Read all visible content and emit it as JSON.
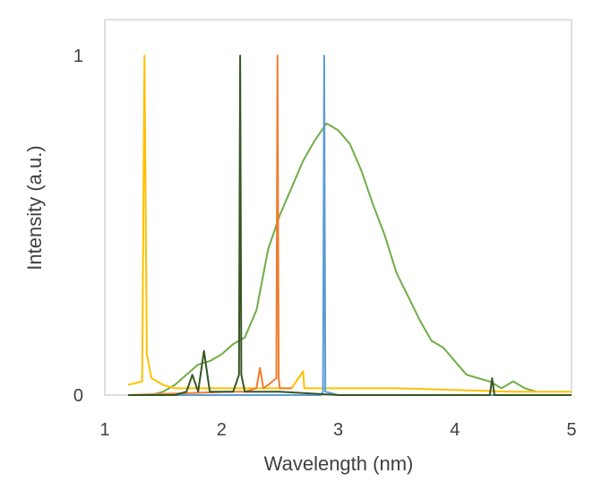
{
  "chart_data": {
    "type": "line",
    "title": "",
    "xlabel": "Wavelength (nm)",
    "ylabel": "Intensity (a.u.)",
    "xlim": [
      1,
      5
    ],
    "ylim": [
      0,
      1
    ],
    "x_ticks": [
      1,
      2,
      3,
      4,
      5
    ],
    "x_tick_labels": [
      "1",
      "2",
      "3",
      "4",
      "5"
    ],
    "y_ticks": [
      0,
      1
    ],
    "y_tick_labels": [
      "0",
      "1"
    ],
    "grid": false,
    "legend": "none",
    "series": [
      {
        "color": "#70ad47",
        "x": [
          1.2,
          1.3,
          1.4,
          1.5,
          1.6,
          1.7,
          1.8,
          1.9,
          2.0,
          2.1,
          2.2,
          2.3,
          2.4,
          2.5,
          2.6,
          2.7,
          2.8,
          2.9,
          3.0,
          3.1,
          3.2,
          3.3,
          3.4,
          3.5,
          3.6,
          3.7,
          3.8,
          3.9,
          4.0,
          4.1,
          4.2,
          4.3,
          4.4,
          4.5,
          4.6,
          4.7
        ],
        "y": [
          0.0,
          0.0,
          0.0,
          0.01,
          0.03,
          0.06,
          0.09,
          0.1,
          0.12,
          0.15,
          0.17,
          0.25,
          0.43,
          0.53,
          0.61,
          0.69,
          0.75,
          0.8,
          0.78,
          0.74,
          0.66,
          0.56,
          0.47,
          0.36,
          0.29,
          0.22,
          0.16,
          0.14,
          0.1,
          0.06,
          0.05,
          0.04,
          0.02,
          0.04,
          0.02,
          0.01
        ]
      },
      {
        "color": "#ffc000",
        "x": [
          1.2,
          1.32,
          1.34,
          1.36,
          1.4,
          1.5,
          1.6,
          1.8,
          2.0,
          2.2,
          2.4,
          2.6,
          2.7,
          2.71,
          2.8,
          3.0,
          3.5,
          4.0,
          4.5,
          5.0
        ],
        "y": [
          0.03,
          0.04,
          1.0,
          0.12,
          0.05,
          0.03,
          0.02,
          0.02,
          0.02,
          0.02,
          0.02,
          0.02,
          0.07,
          0.02,
          0.02,
          0.02,
          0.02,
          0.015,
          0.01,
          0.01
        ]
      },
      {
        "color": "#ed7d31",
        "x": [
          1.2,
          2.1,
          2.2,
          2.3,
          2.33,
          2.36,
          2.4,
          2.47,
          2.48,
          2.49,
          2.5,
          2.55,
          2.6
        ],
        "y": [
          0.0,
          0.01,
          0.01,
          0.02,
          0.08,
          0.02,
          0.03,
          0.05,
          1.0,
          0.05,
          0.02,
          0.02,
          0.02
        ]
      },
      {
        "color": "#5b9bd5",
        "x": [
          1.2,
          2.85,
          2.87,
          2.88,
          2.89,
          3.0,
          4.0,
          5.0
        ],
        "y": [
          0.0,
          0.0,
          0.01,
          1.0,
          0.01,
          0.0,
          0.0,
          0.0
        ]
      },
      {
        "color": "#375623",
        "x": [
          1.2,
          1.6,
          1.7,
          1.75,
          1.8,
          1.85,
          1.9,
          2.0,
          2.1,
          2.15,
          2.16,
          2.17,
          2.2,
          2.3,
          2.5,
          3.0,
          3.5,
          4.0,
          4.3,
          4.32,
          4.34,
          4.5,
          5.0
        ],
        "y": [
          0.0,
          0.0,
          0.01,
          0.06,
          0.01,
          0.13,
          0.01,
          0.01,
          0.01,
          0.06,
          1.0,
          0.06,
          0.01,
          0.01,
          0.01,
          0.0,
          0.0,
          0.0,
          0.0,
          0.05,
          0.0,
          0.0,
          0.0
        ]
      }
    ]
  }
}
